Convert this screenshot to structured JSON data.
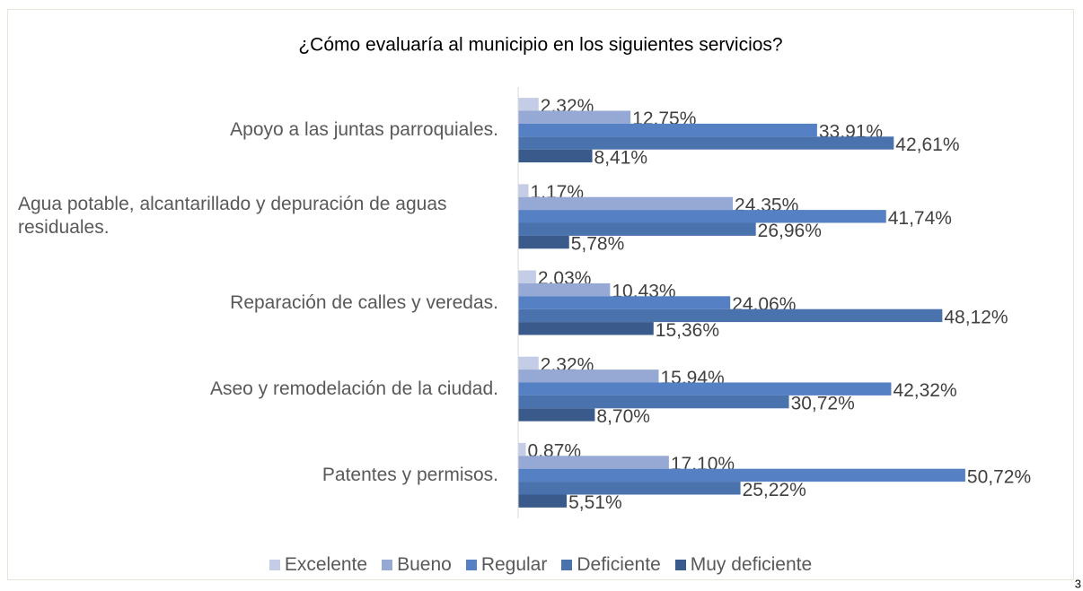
{
  "chart_data": {
    "type": "hbar",
    "title": "¿Cómo evaluaría al municipio en los siguientes servicios?",
    "categories": [
      "Apoyo a las juntas parroquiales.",
      "Agua potable, alcantarillado y depuración de aguas residuales.",
      "Reparación de calles y veredas.",
      "Aseo y remodelación de la ciudad.",
      "Patentes y permisos."
    ],
    "series": [
      {
        "name": "Excelente",
        "color": "#c5cde6",
        "values": [
          2.32,
          1.17,
          2.03,
          2.32,
          0.87
        ],
        "value_labels": [
          "2,32%",
          "1.17%",
          "2,03%",
          "2,32%",
          "0,87%"
        ]
      },
      {
        "name": "Bueno",
        "color": "#96a8d4",
        "values": [
          12.75,
          24.35,
          10.43,
          15.94,
          17.1
        ],
        "value_labels": [
          "12,75%",
          "24,35%",
          "10,43%",
          "15,94%",
          "17,10%"
        ]
      },
      {
        "name": "Regular",
        "color": "#5580c4",
        "values": [
          33.91,
          41.74,
          24.06,
          42.32,
          50.72
        ],
        "value_labels": [
          "33,91%",
          "41,74%",
          "24,06%",
          "42,32%",
          "50,72%"
        ]
      },
      {
        "name": "Deficiente",
        "color": "#4a72ad",
        "values": [
          42.61,
          26.96,
          48.12,
          30.72,
          25.22
        ],
        "value_labels": [
          "42,61%",
          "26,96%",
          "48,12%",
          "30,72%",
          "25,22%"
        ]
      },
      {
        "name": "Muy deficiente",
        "color": "#3a5a8c",
        "values": [
          8.41,
          5.78,
          15.36,
          8.7,
          5.51
        ],
        "value_labels": [
          "8,41%",
          "5,78%",
          "15,36%",
          "8,70%",
          "5,51%"
        ]
      }
    ],
    "xlim": [
      0,
      60
    ],
    "legend": "bottom"
  },
  "page_number": "3"
}
